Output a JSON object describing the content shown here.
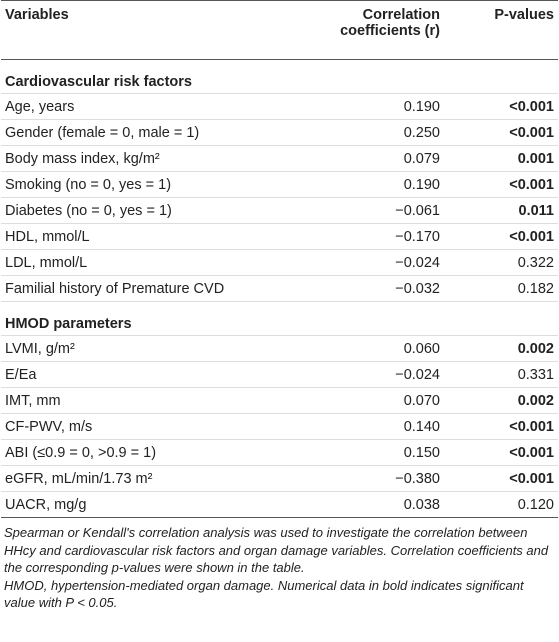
{
  "table": {
    "header": {
      "variables": "Variables",
      "correlation": "Correlation coefficients (r)",
      "p_values": "P-values"
    },
    "sections": [
      {
        "title": "Cardiovascular risk factors",
        "rows": [
          {
            "variable": "Age, years",
            "r": "0.190",
            "p": "<0.001",
            "p_bold": true
          },
          {
            "variable": "Gender (female = 0, male = 1)",
            "r": "0.250",
            "p": "<0.001",
            "p_bold": true
          },
          {
            "variable": "Body mass index, kg/m²",
            "r": "0.079",
            "p": "0.001",
            "p_bold": true
          },
          {
            "variable": "Smoking (no = 0, yes = 1)",
            "r": "0.190",
            "p": "<0.001",
            "p_bold": true
          },
          {
            "variable": "Diabetes (no = 0, yes = 1)",
            "r": "−0.061",
            "p": "0.011",
            "p_bold": true
          },
          {
            "variable": "HDL, mmol/L",
            "r": "−0.170",
            "p": "<0.001",
            "p_bold": true
          },
          {
            "variable": "LDL, mmol/L",
            "r": "−0.024",
            "p": "0.322",
            "p_bold": false
          },
          {
            "variable": "Familial history of Premature CVD",
            "r": "−0.032",
            "p": "0.182",
            "p_bold": false
          }
        ]
      },
      {
        "title": "HMOD parameters",
        "rows": [
          {
            "variable": "LVMI, g/m²",
            "r": "0.060",
            "p": "0.002",
            "p_bold": true
          },
          {
            "variable": "E/Ea",
            "r": "−0.024",
            "p": "0.331",
            "p_bold": false
          },
          {
            "variable": "IMT, mm",
            "r": "0.070",
            "p": "0.002",
            "p_bold": true
          },
          {
            "variable": "CF-PWV, m/s",
            "r": "0.140",
            "p": "<0.001",
            "p_bold": true
          },
          {
            "variable": "ABI (≤0.9 = 0, >0.9 = 1)",
            "r": "0.150",
            "p": "<0.001",
            "p_bold": true
          },
          {
            "variable": "eGFR, mL/min/1.73 m²",
            "r": "−0.380",
            "p": "<0.001",
            "p_bold": true
          },
          {
            "variable": "UACR, mg/g",
            "r": "0.038",
            "p": "0.120",
            "p_bold": false
          }
        ]
      }
    ]
  },
  "footnotes": [
    "Spearman or Kendall's correlation analysis was used to investigate the correlation between HHcy and cardiovascular risk factors and organ damage variables. Correlation coefficients and the corresponding p-values were shown in the table.",
    "HMOD, hypertension-mediated organ damage. Numerical data in bold indicates significant value with P < 0.05."
  ]
}
